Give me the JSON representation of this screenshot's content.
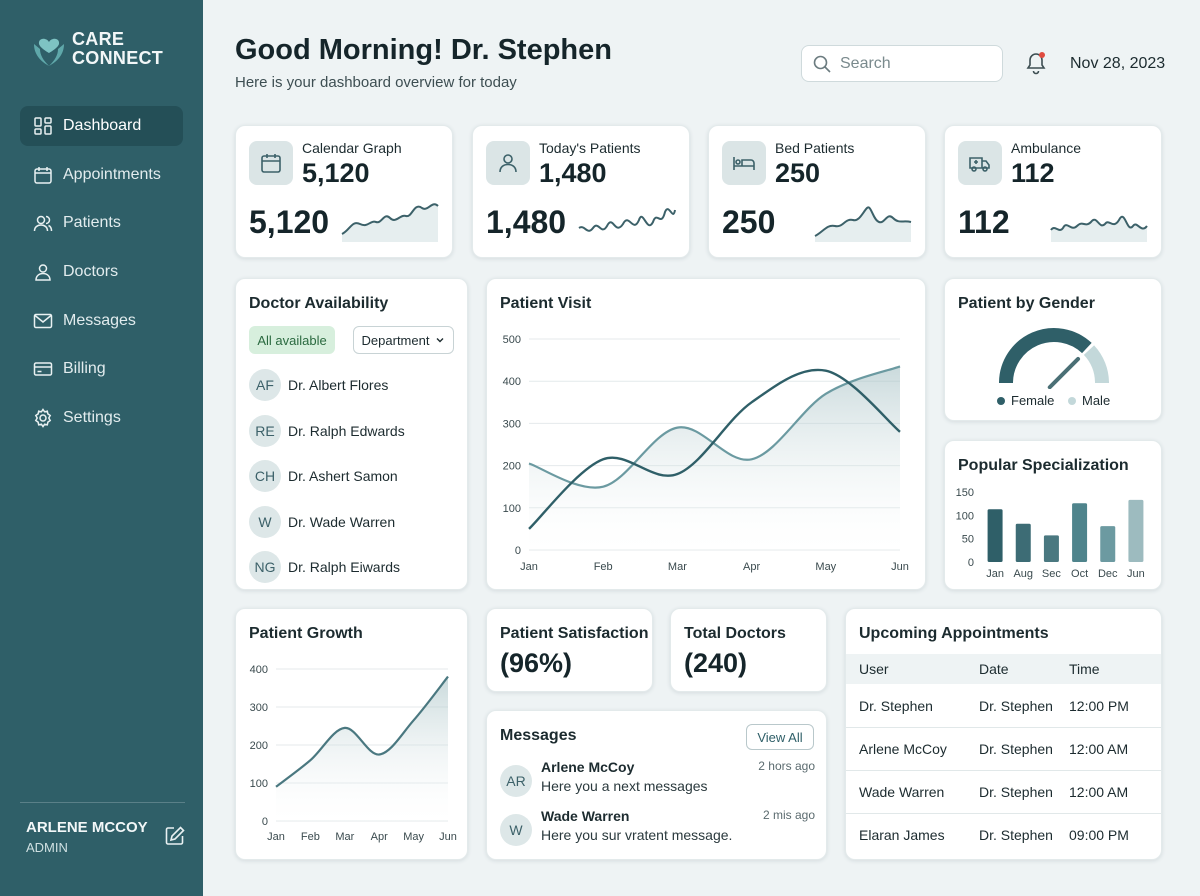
{
  "brand": {
    "line1": "CARE",
    "line2": "CONNECT"
  },
  "nav": [
    {
      "label": "Dashboard",
      "icon": "dashboard-icon"
    },
    {
      "label": "Appointments",
      "icon": "calendar-icon"
    },
    {
      "label": "Patients",
      "icon": "users-icon"
    },
    {
      "label": "Doctors",
      "icon": "user-icon"
    },
    {
      "label": "Messages",
      "icon": "mail-icon"
    },
    {
      "label": "Billing",
      "icon": "card-icon"
    },
    {
      "label": "Settings",
      "icon": "gear-icon"
    }
  ],
  "user": {
    "name": "ARLENE MCCOY",
    "role": "ADMIN"
  },
  "header": {
    "greeting": "Good Morning! Dr. Stephen",
    "subtitle": "Here is your dashboard overview for today",
    "search_placeholder": "Search",
    "date": "Nov 28, 2023"
  },
  "stats": [
    {
      "label": "Calendar Graph",
      "value": "5,120",
      "big": "5,120",
      "icon": "calendar-icon"
    },
    {
      "label": "Today's Patients",
      "value": "1,480",
      "big": "1,480",
      "icon": "user-icon"
    },
    {
      "label": "Bed Patients",
      "value": "250",
      "big": "250",
      "icon": "bed-icon"
    },
    {
      "label": "Ambulance",
      "value": "112",
      "big": "112",
      "icon": "ambulance-icon"
    }
  ],
  "availability": {
    "title": "Doctor Availability",
    "filter": "All available",
    "department": "Department",
    "doctors": [
      {
        "initials": "AF",
        "name": "Dr. Albert Flores"
      },
      {
        "initials": "RE",
        "name": "Dr. Ralph Edwards"
      },
      {
        "initials": "CH",
        "name": "Dr. Ashert Samon"
      },
      {
        "initials": "W",
        "name": "Dr. Wade Warren"
      },
      {
        "initials": "NG",
        "name": "Dr. Ralph Eiwards"
      }
    ]
  },
  "gender": {
    "title": "Patient by Gender",
    "female": "Female",
    "male": "Male"
  },
  "satisfaction": {
    "title": "Patient Satisfaction",
    "value": "(96%)"
  },
  "total_doctors": {
    "title": "Total Doctors",
    "value": "(240)"
  },
  "messages": {
    "title": "Messages",
    "view_all": "View All",
    "items": [
      {
        "initials": "AR",
        "from": "Arlene McCoy",
        "text": "Here you a next messages",
        "time": "2 hors ago"
      },
      {
        "initials": "W",
        "from": "Wade Warren",
        "text": "Here you sur vratent message.",
        "time": "2 mis ago"
      }
    ]
  },
  "appointments": {
    "title": "Upcoming Appointments",
    "columns": [
      "User",
      "Date",
      "Time"
    ],
    "rows": [
      [
        "Dr. Stephen",
        "Dr. Stephen",
        "12:00 PM"
      ],
      [
        "Arlene McCoy",
        "Dr. Stephen",
        "12:00 AM"
      ],
      [
        "Wade Warren",
        "Dr. Stephen",
        "12:00 AM"
      ],
      [
        "Elaran James",
        "Dr. Stephen",
        "09:00 PM"
      ]
    ]
  },
  "colors": {
    "primary": "#2f5f68",
    "accent": "#e04b3f",
    "light": "#8fb3b8"
  },
  "chart_data": [
    {
      "type": "line",
      "title": "Patient Visit",
      "x": [
        "Jan",
        "Feb",
        "Mar",
        "Apr",
        "May",
        "Jun"
      ],
      "ylim": [
        0,
        500
      ],
      "yticks": [
        0,
        100,
        200,
        300,
        400,
        500
      ],
      "series": [
        {
          "values": [
            50,
            215,
            180,
            350,
            425,
            280
          ]
        },
        {
          "values": [
            205,
            150,
            290,
            215,
            370,
            435
          ]
        }
      ]
    },
    {
      "type": "gauge",
      "title": "Patient by Gender",
      "series": [
        {
          "name": "Female",
          "value": 0.75
        },
        {
          "name": "Male",
          "value": 0.25
        }
      ]
    },
    {
      "type": "bar",
      "title": "Popular Specialization",
      "categories": [
        "Jan",
        "Aug",
        "Sec",
        "Oct",
        "Dec",
        "Jun"
      ],
      "values": [
        113,
        82,
        57,
        126,
        77,
        133
      ],
      "ylim": [
        0,
        150
      ],
      "yticks": [
        0,
        50,
        100,
        150
      ]
    },
    {
      "type": "area",
      "title": "Patient Growth",
      "x": [
        "Jan",
        "Feb",
        "Mar",
        "Apr",
        "May",
        "Jun"
      ],
      "ylim": [
        0,
        400
      ],
      "yticks": [
        0,
        100,
        200,
        300,
        400
      ],
      "series": [
        {
          "values": [
            90,
            160,
            245,
            175,
            265,
            380
          ]
        }
      ]
    }
  ]
}
